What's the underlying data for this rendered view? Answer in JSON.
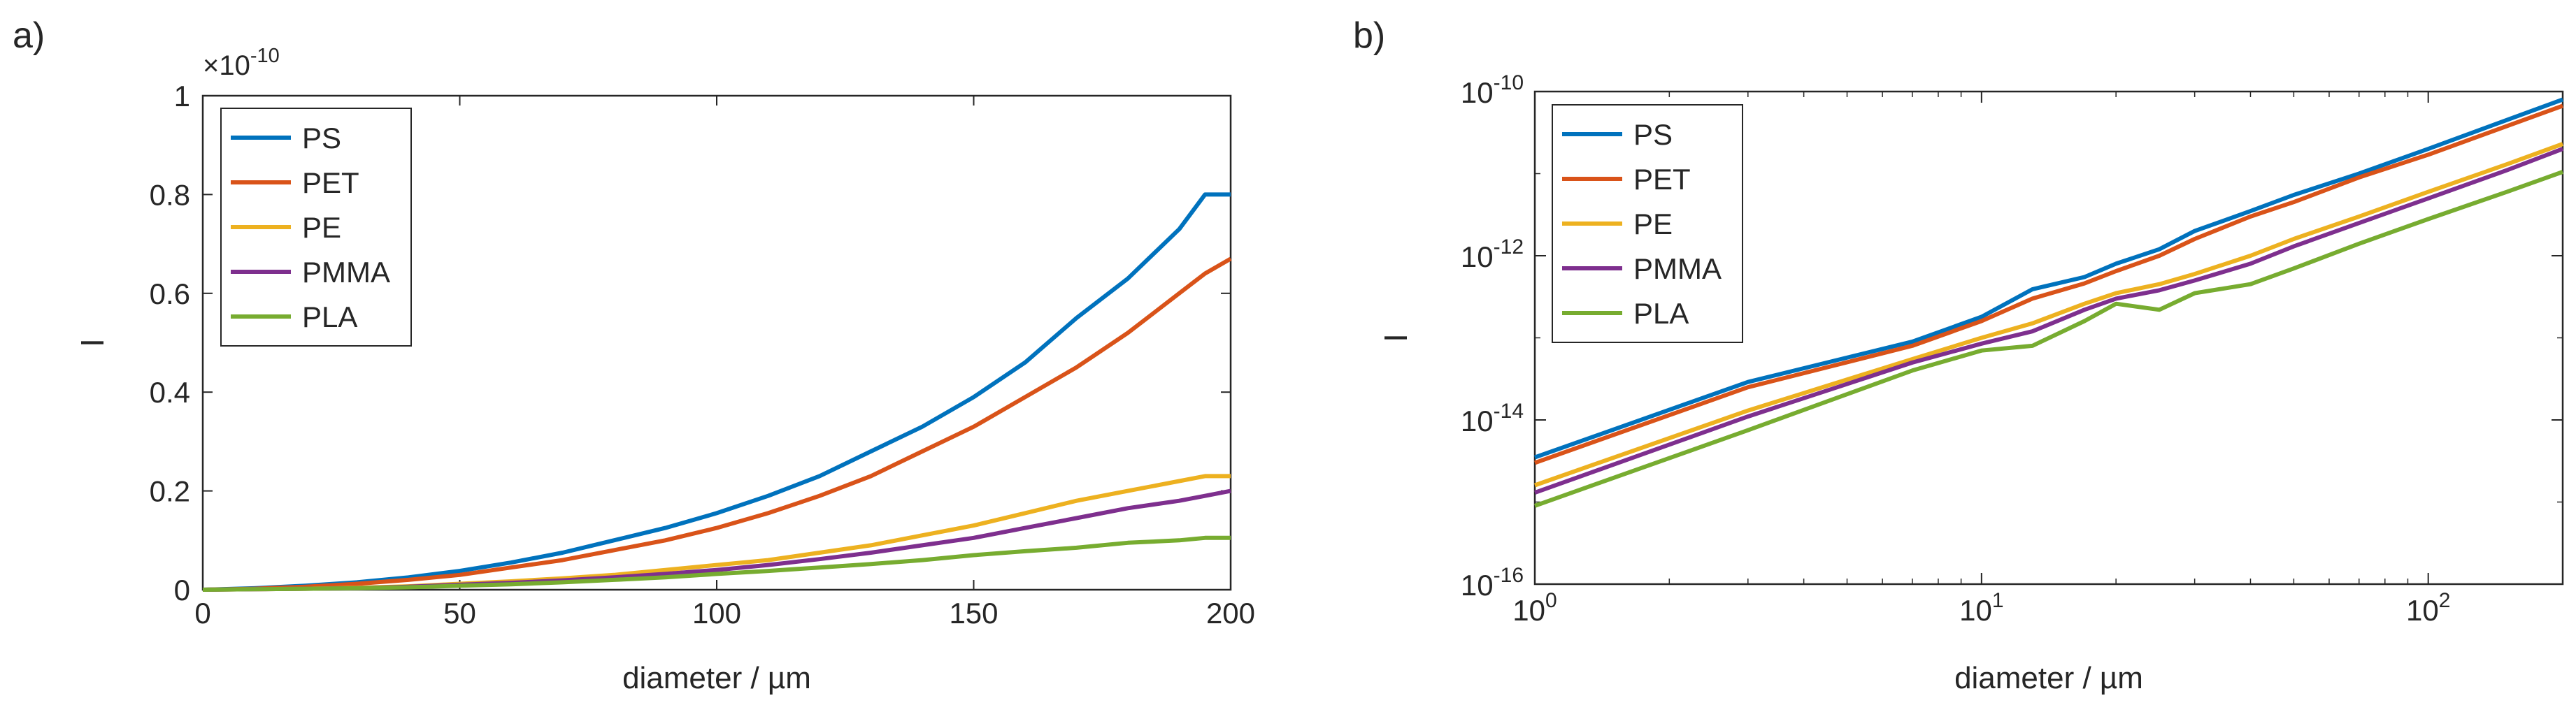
{
  "panel_labels": [
    "a)",
    "b)"
  ],
  "chart_data": [
    {
      "type": "line",
      "panel": "a)",
      "xlabel": "diameter / µm",
      "ylabel": "I",
      "exponent_label": "×10",
      "exponent_power": "-10",
      "xlim": [
        0,
        200
      ],
      "ylim": [
        0,
        1
      ],
      "xscale": "linear",
      "yscale": "linear",
      "xticks": [
        0,
        50,
        100,
        150,
        200
      ],
      "xticklabels": [
        "0",
        "50",
        "100",
        "150",
        "200"
      ],
      "yticks": [
        0,
        0.2,
        0.4,
        0.6,
        0.8,
        1
      ],
      "yticklabels": [
        "0",
        "0.2",
        "0.4",
        "0.6",
        "0.8",
        "1"
      ],
      "grid": false,
      "legend_position": "top-left",
      "x": [
        0,
        10,
        20,
        30,
        40,
        50,
        60,
        70,
        80,
        90,
        100,
        110,
        120,
        130,
        140,
        150,
        160,
        170,
        180,
        190,
        195,
        200
      ],
      "series": [
        {
          "name": "PS",
          "color": "#0072BD",
          "values": [
            0,
            0.003,
            0.008,
            0.015,
            0.025,
            0.038,
            0.055,
            0.075,
            0.1,
            0.125,
            0.155,
            0.19,
            0.23,
            0.28,
            0.33,
            0.39,
            0.46,
            0.55,
            0.63,
            0.73,
            0.8,
            0.8
          ]
        },
        {
          "name": "PET",
          "color": "#D95319",
          "values": [
            0,
            0.002,
            0.006,
            0.012,
            0.02,
            0.03,
            0.045,
            0.06,
            0.08,
            0.1,
            0.125,
            0.155,
            0.19,
            0.23,
            0.28,
            0.33,
            0.39,
            0.45,
            0.52,
            0.6,
            0.64,
            0.67
          ]
        },
        {
          "name": "PE",
          "color": "#EDB120",
          "values": [
            0,
            0.001,
            0.002,
            0.004,
            0.007,
            0.012,
            0.017,
            0.023,
            0.03,
            0.04,
            0.05,
            0.06,
            0.075,
            0.09,
            0.11,
            0.13,
            0.155,
            0.18,
            0.2,
            0.22,
            0.23,
            0.23
          ]
        },
        {
          "name": "PMMA",
          "color": "#7E2F8E",
          "values": [
            0,
            0.001,
            0.002,
            0.003,
            0.006,
            0.01,
            0.014,
            0.019,
            0.025,
            0.032,
            0.04,
            0.05,
            0.062,
            0.075,
            0.09,
            0.105,
            0.125,
            0.145,
            0.165,
            0.18,
            0.19,
            0.2
          ]
        },
        {
          "name": "PLA",
          "color": "#77AC30",
          "values": [
            0,
            0.001,
            0.002,
            0.003,
            0.005,
            0.008,
            0.011,
            0.015,
            0.02,
            0.025,
            0.032,
            0.038,
            0.045,
            0.052,
            0.06,
            0.07,
            0.078,
            0.085,
            0.095,
            0.1,
            0.105,
            0.105
          ]
        }
      ]
    },
    {
      "type": "line",
      "panel": "b)",
      "xlabel": "diameter / µm",
      "ylabel": "I",
      "xlim": [
        1,
        200
      ],
      "ylim": [
        1e-16,
        1e-10
      ],
      "xscale": "log",
      "yscale": "log",
      "xticks": [
        1,
        10,
        100
      ],
      "xtick_base": "10",
      "xtick_powers": [
        "0",
        "1",
        "2"
      ],
      "yticks": [
        1e-16,
        1e-14,
        1e-12,
        1e-10
      ],
      "ytick_base": "10",
      "ytick_powers": [
        "-16",
        "-14",
        "-12",
        "-10"
      ],
      "grid": false,
      "legend_position": "top-left",
      "x": [
        1,
        3,
        7,
        10,
        13,
        17,
        20,
        25,
        30,
        40,
        50,
        70,
        100,
        150,
        200
      ],
      "series": [
        {
          "name": "PS",
          "color": "#0072BD",
          "values": [
            3.5e-15,
            2.9e-14,
            9e-14,
            1.8e-13,
            3.9e-13,
            5.5e-13,
            8e-13,
            1.2e-12,
            2e-12,
            3.5e-12,
            5.5e-12,
            1e-11,
            2e-11,
            4.5e-11,
            8e-11
          ]
        },
        {
          "name": "PET",
          "color": "#D95319",
          "values": [
            3e-15,
            2.5e-14,
            8e-14,
            1.6e-13,
            3e-13,
            4.6e-13,
            6.5e-13,
            1e-12,
            1.6e-12,
            3e-12,
            4.5e-12,
            9e-12,
            1.7e-11,
            3.8e-11,
            6.7e-11
          ]
        },
        {
          "name": "PE",
          "color": "#EDB120",
          "values": [
            1.6e-15,
            1.3e-14,
            5.5e-14,
            1e-13,
            1.5e-13,
            2.6e-13,
            3.5e-13,
            4.5e-13,
            6e-13,
            1e-12,
            1.6e-12,
            3e-12,
            6e-12,
            1.3e-11,
            2.3e-11
          ]
        },
        {
          "name": "PMMA",
          "color": "#7E2F8E",
          "values": [
            1.3e-15,
            1.1e-14,
            5e-14,
            8.5e-14,
            1.2e-13,
            2.2e-13,
            3e-13,
            3.8e-13,
            5e-13,
            8e-13,
            1.3e-12,
            2.5e-12,
            5e-12,
            1.1e-11,
            2e-11
          ]
        },
        {
          "name": "PLA",
          "color": "#77AC30",
          "values": [
            9e-16,
            7.5e-15,
            4e-14,
            7e-14,
            8e-14,
            1.6e-13,
            2.6e-13,
            2.2e-13,
            3.5e-13,
            4.5e-13,
            7e-13,
            1.4e-12,
            2.8e-12,
            6e-12,
            1.05e-11
          ]
        }
      ]
    }
  ]
}
